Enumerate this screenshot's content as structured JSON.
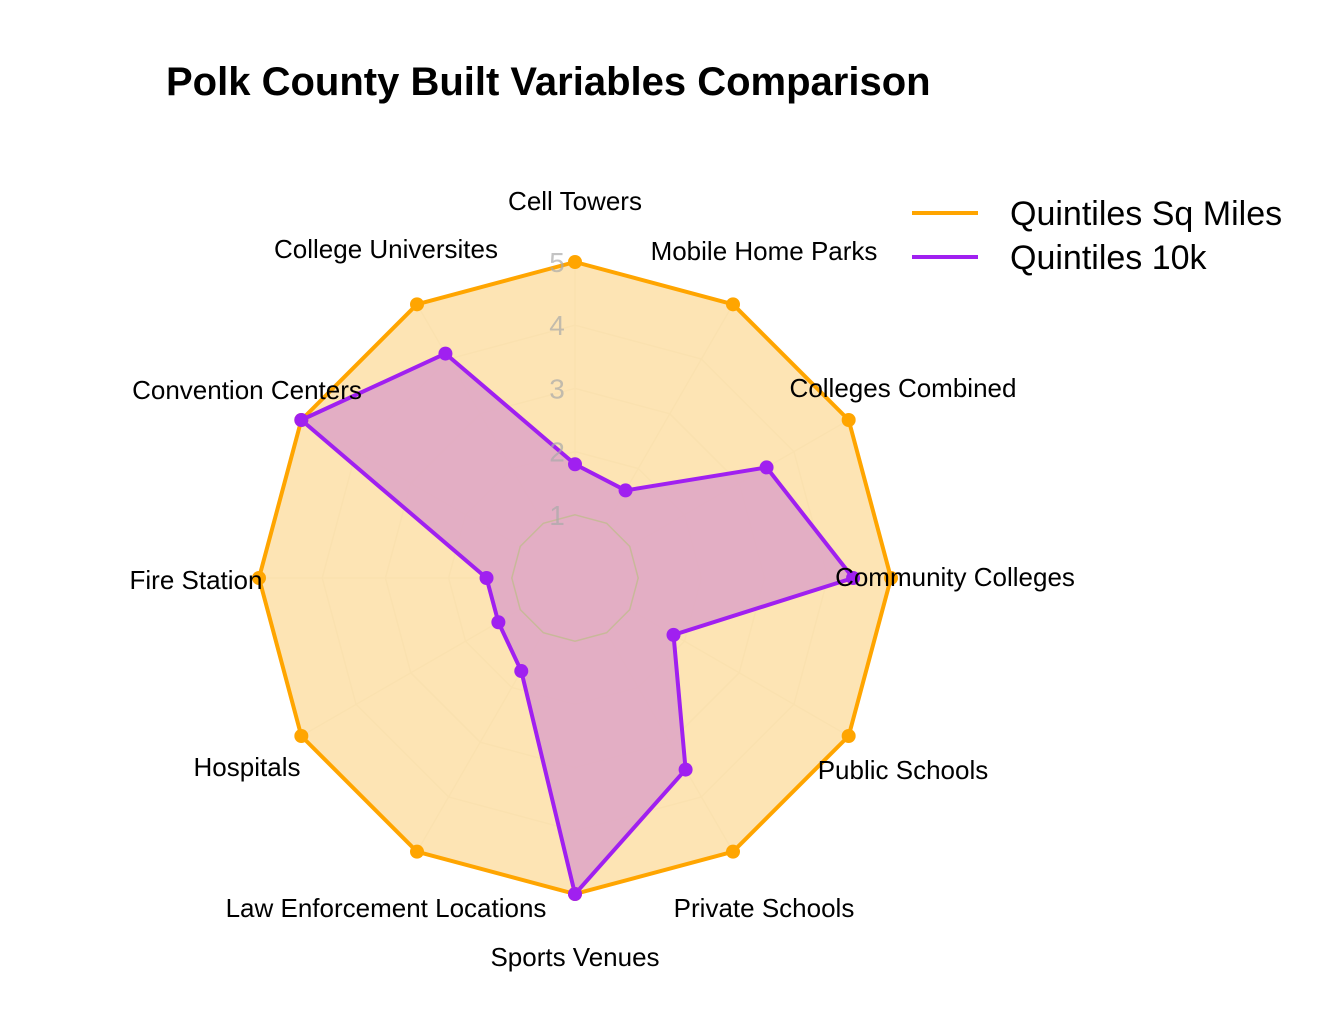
{
  "chart_data": {
    "type": "radar",
    "title": "Polk County Built Variables Comparison",
    "axes": [
      "Cell Towers",
      "Mobile Home Parks",
      "Colleges Combined",
      "Community Colleges",
      "Public Schools",
      "Private Schools",
      "Sports Venues",
      "Law Enforcement Locations",
      "Hospitals",
      "Fire Station",
      "Convention Centers",
      "College Universites"
    ],
    "range": [
      0,
      5
    ],
    "ticks": [
      "1",
      "2",
      "3",
      "4",
      "5"
    ],
    "grid": true,
    "legend_position": "top-right",
    "series": [
      {
        "name": "Quintiles Sq Miles",
        "color": "#FFA500",
        "fill": "#FDE3B0",
        "values": [
          5,
          5,
          5,
          5,
          5,
          5,
          5,
          5,
          5,
          5,
          5,
          5
        ]
      },
      {
        "name": "Quintiles 10k",
        "color": "#A020F0",
        "fill": "#DEA5C7",
        "values": [
          1.8,
          1.6,
          3.5,
          4.4,
          1.8,
          3.5,
          5,
          1.7,
          1.4,
          1.4,
          5,
          4.1
        ]
      }
    ]
  }
}
